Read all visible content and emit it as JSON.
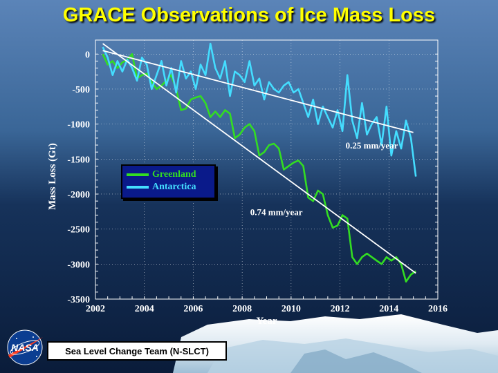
{
  "title": "GRACE Observations of Ice Mass Loss",
  "footer": {
    "team": "Sea Level Change Team (N-SLCT)",
    "logo_text": "NASA"
  },
  "colors": {
    "greenland": "#33dd22",
    "antarctica": "#44ddff",
    "trend": "#ffffff",
    "title": "#ffff00"
  },
  "chart_data": {
    "type": "line",
    "xlabel": "Year",
    "ylabel": "Mass Loss (Gt)",
    "xlim": [
      2002,
      2016
    ],
    "ylim": [
      -3500,
      200
    ],
    "x_ticks": [
      2002,
      2004,
      2006,
      2008,
      2010,
      2012,
      2014,
      2016
    ],
    "y_ticks": [
      0,
      -500,
      -1000,
      -1500,
      -2000,
      -2500,
      -3000,
      -3500
    ],
    "grid": true,
    "legend_position": "middle-left",
    "series": [
      {
        "name": "Greenland",
        "color": "#33dd22",
        "x": [
          2002.3,
          2002.5,
          2002.7,
          2002.9,
          2003.1,
          2003.3,
          2003.5,
          2003.7,
          2003.9,
          2004.1,
          2004.3,
          2004.5,
          2004.7,
          2004.9,
          2005.1,
          2005.3,
          2005.5,
          2005.7,
          2005.9,
          2006.1,
          2006.3,
          2006.5,
          2006.7,
          2006.9,
          2007.1,
          2007.3,
          2007.5,
          2007.7,
          2007.9,
          2008.1,
          2008.3,
          2008.5,
          2008.7,
          2008.9,
          2009.1,
          2009.3,
          2009.5,
          2009.7,
          2009.9,
          2010.1,
          2010.3,
          2010.5,
          2010.7,
          2010.9,
          2011.1,
          2011.3,
          2011.5,
          2011.7,
          2011.9,
          2012.1,
          2012.3,
          2012.5,
          2012.7,
          2012.9,
          2013.1,
          2013.3,
          2013.5,
          2013.7,
          2013.9,
          2014.1,
          2014.3,
          2014.5,
          2014.7,
          2014.9,
          2015.1
        ],
        "values": [
          0,
          -150,
          -100,
          -200,
          -120,
          -80,
          0,
          -350,
          -300,
          -280,
          -400,
          -500,
          -450,
          -380,
          -300,
          -500,
          -800,
          -780,
          -650,
          -620,
          -600,
          -700,
          -900,
          -820,
          -900,
          -800,
          -850,
          -1200,
          -1150,
          -1050,
          -1000,
          -1100,
          -1450,
          -1400,
          -1300,
          -1280,
          -1350,
          -1650,
          -1600,
          -1550,
          -1520,
          -1600,
          -2050,
          -2100,
          -1950,
          -2000,
          -2300,
          -2480,
          -2450,
          -2300,
          -2350,
          -2900,
          -3000,
          -2900,
          -2850,
          -2900,
          -2950,
          -3000,
          -2900,
          -2950,
          -2900,
          -3000,
          -3250,
          -3150,
          -3100
        ]
      },
      {
        "name": "Antarctica",
        "color": "#44ddff",
        "x": [
          2002.3,
          2002.5,
          2002.7,
          2002.9,
          2003.1,
          2003.3,
          2003.5,
          2003.7,
          2003.9,
          2004.1,
          2004.3,
          2004.5,
          2004.7,
          2004.9,
          2005.1,
          2005.3,
          2005.5,
          2005.7,
          2005.9,
          2006.1,
          2006.3,
          2006.5,
          2006.7,
          2006.9,
          2007.1,
          2007.3,
          2007.5,
          2007.7,
          2007.9,
          2008.1,
          2008.3,
          2008.5,
          2008.7,
          2008.9,
          2009.1,
          2009.3,
          2009.5,
          2009.7,
          2009.9,
          2010.1,
          2010.3,
          2010.5,
          2010.7,
          2010.9,
          2011.1,
          2011.3,
          2011.5,
          2011.7,
          2011.9,
          2012.1,
          2012.3,
          2012.5,
          2012.7,
          2012.9,
          2013.1,
          2013.3,
          2013.5,
          2013.7,
          2013.9,
          2014.1,
          2014.3,
          2014.5,
          2014.7,
          2014.9,
          2015.1
        ],
        "values": [
          100,
          -50,
          -300,
          -100,
          -250,
          -80,
          -200,
          -380,
          -50,
          -150,
          -500,
          -300,
          -100,
          -450,
          -200,
          -550,
          -100,
          -350,
          -250,
          -500,
          -150,
          -300,
          150,
          -200,
          -350,
          -100,
          -600,
          -250,
          -300,
          -400,
          -100,
          -450,
          -350,
          -650,
          -400,
          -500,
          -550,
          -450,
          -400,
          -550,
          -500,
          -700,
          -900,
          -650,
          -1000,
          -750,
          -900,
          -1050,
          -800,
          -1100,
          -300,
          -950,
          -1200,
          -700,
          -1150,
          -1000,
          -900,
          -1300,
          -750,
          -1450,
          -1100,
          -1350,
          -950,
          -1200,
          -1750
        ]
      },
      {
        "name": "",
        "role": "trend",
        "label": "0.74 mm/year",
        "color": "#ffffff",
        "x": [
          2002.3,
          2015.1
        ],
        "values": [
          150,
          -3130
        ]
      },
      {
        "name": "",
        "role": "trend",
        "label": "0.25 mm/year",
        "color": "#ffffff",
        "x": [
          2002.3,
          2015.0
        ],
        "values": [
          50,
          -1120
        ]
      }
    ],
    "annotations": [
      {
        "text": "0.25 mm/year",
        "x": 2013.3,
        "y": -1350
      },
      {
        "text": "0.74 mm/year",
        "x": 2009.4,
        "y": -2300
      }
    ]
  }
}
